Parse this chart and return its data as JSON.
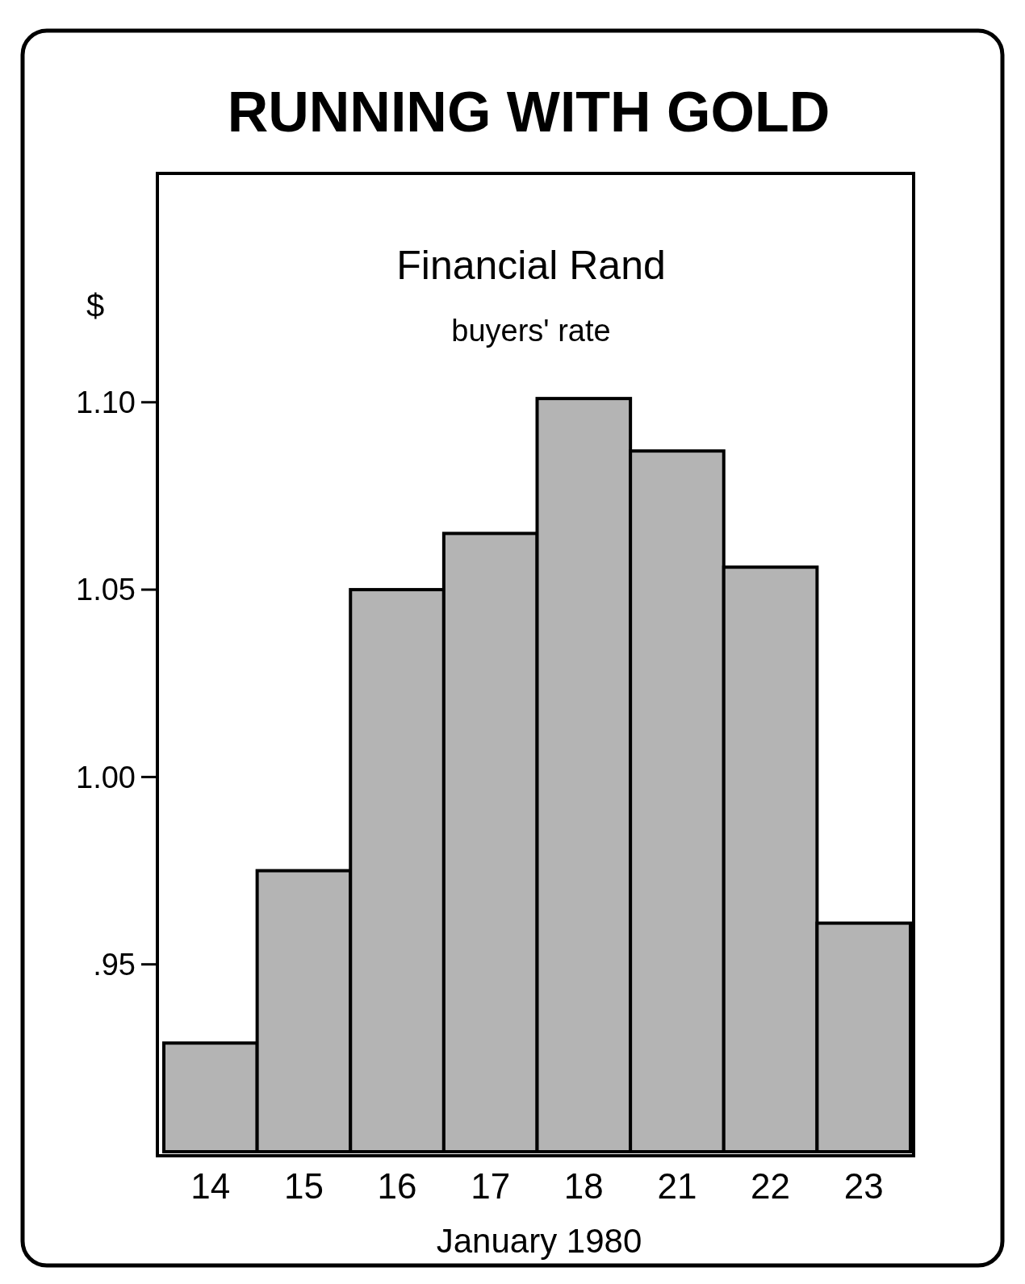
{
  "chart_data": {
    "type": "bar",
    "title": "RUNNING WITH GOLD",
    "subtitle": "Financial Rand",
    "annotations": [
      "buyers' rate"
    ],
    "xlabel": "January 1980",
    "ylabel": "$",
    "categories": [
      "14",
      "15",
      "16",
      "17",
      "18",
      "21",
      "22",
      "23"
    ],
    "values": [
      0.929,
      0.975,
      1.05,
      1.065,
      1.101,
      1.087,
      1.056,
      0.961
    ],
    "color": "#b4b4b4",
    "ylim": [
      0.9,
      1.16
    ],
    "yticks": [
      {
        "value": 0.95,
        "label": ".95"
      },
      {
        "value": 1.0,
        "label": "1.00"
      },
      {
        "value": 1.05,
        "label": "1.05"
      },
      {
        "value": 1.1,
        "label": "1.10"
      }
    ],
    "grid": false
  }
}
